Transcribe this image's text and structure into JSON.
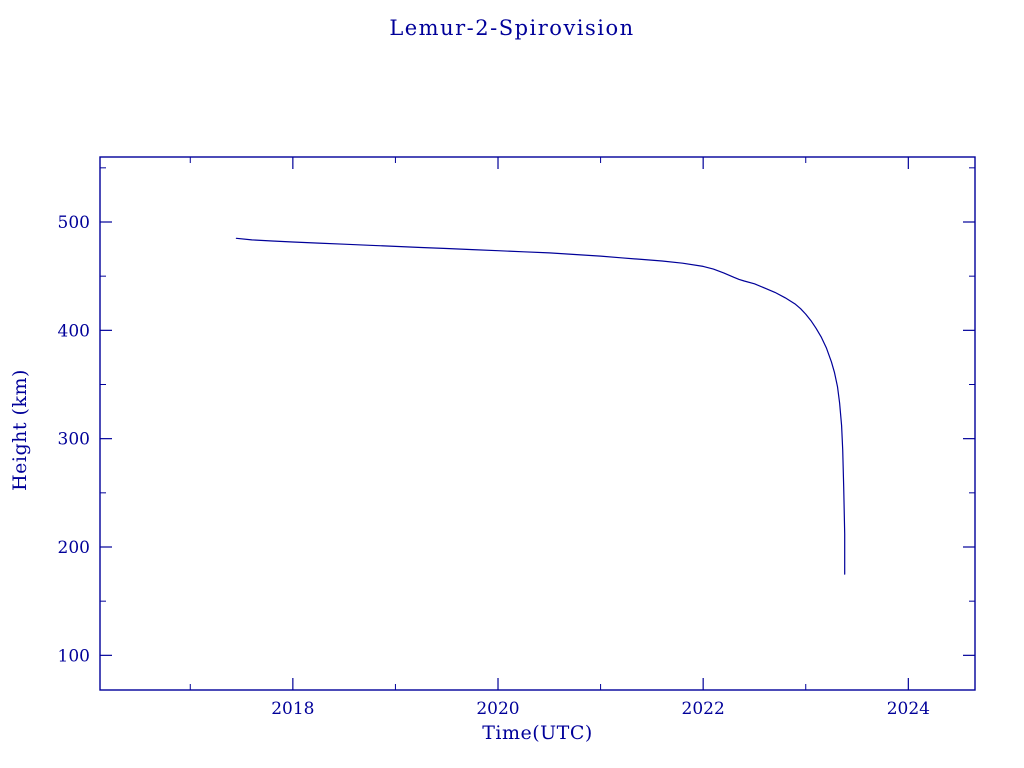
{
  "page": {
    "background": "#ffffff",
    "accent": "#000099"
  },
  "chart_data": {
    "type": "line",
    "title": "Lemur-2-Spirovision",
    "xlabel": "Time(UTC)",
    "ylabel": "Height (km)",
    "xlim": [
      2016.12,
      2024.65
    ],
    "ylim": [
      68,
      560
    ],
    "x_major_ticks": [
      2018,
      2020,
      2022,
      2024
    ],
    "x_minor_ticks": [
      2017,
      2019,
      2021,
      2023
    ],
    "y_major_ticks": [
      100,
      200,
      300,
      400,
      500
    ],
    "y_minor_ticks": [
      150,
      250,
      350,
      450,
      550
    ],
    "grid": false,
    "legend": "none",
    "line_color": "#000099",
    "series": [
      {
        "name": "Lemur-2-Spirovision height",
        "points": [
          [
            2017.45,
            485
          ],
          [
            2017.6,
            483.5
          ],
          [
            2017.8,
            482.5
          ],
          [
            2018.0,
            481.5
          ],
          [
            2018.25,
            480.5
          ],
          [
            2018.5,
            479.5
          ],
          [
            2018.75,
            478.5
          ],
          [
            2019.0,
            477.5
          ],
          [
            2019.25,
            476.5
          ],
          [
            2019.5,
            475.5
          ],
          [
            2019.75,
            474.5
          ],
          [
            2020.0,
            473.5
          ],
          [
            2020.25,
            472.5
          ],
          [
            2020.5,
            471.5
          ],
          [
            2020.75,
            470.0
          ],
          [
            2021.0,
            468.5
          ],
          [
            2021.2,
            467.0
          ],
          [
            2021.4,
            465.5
          ],
          [
            2021.6,
            464.0
          ],
          [
            2021.8,
            462.0
          ],
          [
            2022.0,
            459.0
          ],
          [
            2022.1,
            456.5
          ],
          [
            2022.2,
            453.0
          ],
          [
            2022.3,
            449.0
          ],
          [
            2022.35,
            447.0
          ],
          [
            2022.4,
            445.5
          ],
          [
            2022.5,
            443.0
          ],
          [
            2022.6,
            439.0
          ],
          [
            2022.7,
            435.0
          ],
          [
            2022.8,
            430.0
          ],
          [
            2022.9,
            424.0
          ],
          [
            2022.95,
            420.0
          ],
          [
            2023.0,
            415.0
          ],
          [
            2023.05,
            409.0
          ],
          [
            2023.1,
            402.0
          ],
          [
            2023.15,
            394.0
          ],
          [
            2023.2,
            384.0
          ],
          [
            2023.25,
            371.0
          ],
          [
            2023.28,
            361.0
          ],
          [
            2023.31,
            348.0
          ],
          [
            2023.33,
            333.0
          ],
          [
            2023.35,
            312.0
          ],
          [
            2023.36,
            290.0
          ],
          [
            2023.37,
            255.0
          ],
          [
            2023.38,
            212.0
          ],
          [
            2023.38,
            175.0
          ]
        ]
      }
    ]
  }
}
